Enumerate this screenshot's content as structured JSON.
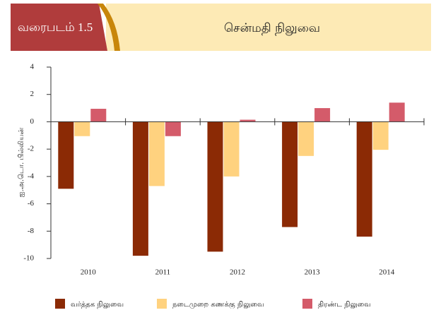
{
  "chart_data": {
    "type": "bar",
    "figure_label": "வரைபடம் 1.5",
    "title": "சென்மதி நிலுவை",
    "y_label": "ஐ.அ.டொ. பில்லியன்",
    "categories": [
      "2010",
      "2011",
      "2012",
      "2013",
      "2014"
    ],
    "series": [
      {
        "name": "வர்த்தக நிலுவை",
        "color": "#8b2a05",
        "values": [
          -4.9,
          -9.8,
          -9.5,
          -7.7,
          -8.4
        ]
      },
      {
        "name": "நடைமுறை கணக்கு நிலுவை",
        "color": "#ffd27f",
        "values": [
          -1.05,
          -4.7,
          -4.0,
          -2.5,
          -2.05
        ]
      },
      {
        "name": "திரண்ட நிலுவை",
        "color": "#d45b6a",
        "values": [
          0.95,
          -1.05,
          0.15,
          1.0,
          1.4
        ]
      }
    ],
    "ylim": [
      -10,
      4
    ],
    "yticks": [
      -10,
      -8,
      -6,
      -4,
      -2,
      0,
      2,
      4
    ],
    "legend": "bottom"
  }
}
